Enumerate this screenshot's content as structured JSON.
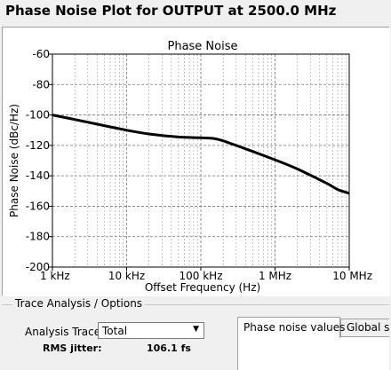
{
  "window": {
    "title": "Phase Noise Plot for OUTPUT at 2500.0 MHz"
  },
  "chart_data": {
    "type": "line",
    "title": "Phase Noise",
    "xlabel": "Offset Frequency (Hz)",
    "ylabel": "Phase Noise (dBc/Hz)",
    "x_scale": "log",
    "xlim": [
      1000,
      10000000
    ],
    "ylim": [
      -200,
      -60
    ],
    "grid": true,
    "xticks": [
      {
        "value": 1000,
        "label": "1 kHz"
      },
      {
        "value": 10000,
        "label": "10 kHz"
      },
      {
        "value": 100000,
        "label": "100 kHz"
      },
      {
        "value": 1000000,
        "label": "1 MHz"
      },
      {
        "value": 10000000,
        "label": "10 MHz"
      }
    ],
    "yticks": [
      {
        "value": -60,
        "label": "-60"
      },
      {
        "value": -80,
        "label": "-80"
      },
      {
        "value": -100,
        "label": "-100"
      },
      {
        "value": -120,
        "label": "-120"
      },
      {
        "value": -140,
        "label": "-140"
      },
      {
        "value": -160,
        "label": "-160"
      },
      {
        "value": -180,
        "label": "-180"
      },
      {
        "value": -200,
        "label": "-200"
      }
    ],
    "series": [
      {
        "color": "#000000",
        "x": [
          1000,
          2000,
          5000,
          10000,
          20000,
          50000,
          100000,
          150000,
          200000,
          300000,
          500000,
          1000000,
          2000000,
          5000000,
          7000000,
          10000000
        ],
        "y": [
          -100,
          -103,
          -107,
          -110,
          -112.5,
          -114.5,
          -115,
          -115.5,
          -117,
          -120,
          -124,
          -129.5,
          -135.5,
          -145,
          -149,
          -151.5
        ]
      }
    ]
  },
  "options": {
    "legend": "Trace Analysis / Options",
    "trace_label": "Analysis Trace:",
    "trace_value": "Total",
    "jitter_label": "RMS jitter:",
    "jitter_value": "106.1 fs"
  },
  "tabs": [
    {
      "label": "Phase noise values",
      "active": true
    },
    {
      "label": "Global spu",
      "active": false
    }
  ],
  "icons": {
    "dropdown": "chevron-down-icon"
  }
}
